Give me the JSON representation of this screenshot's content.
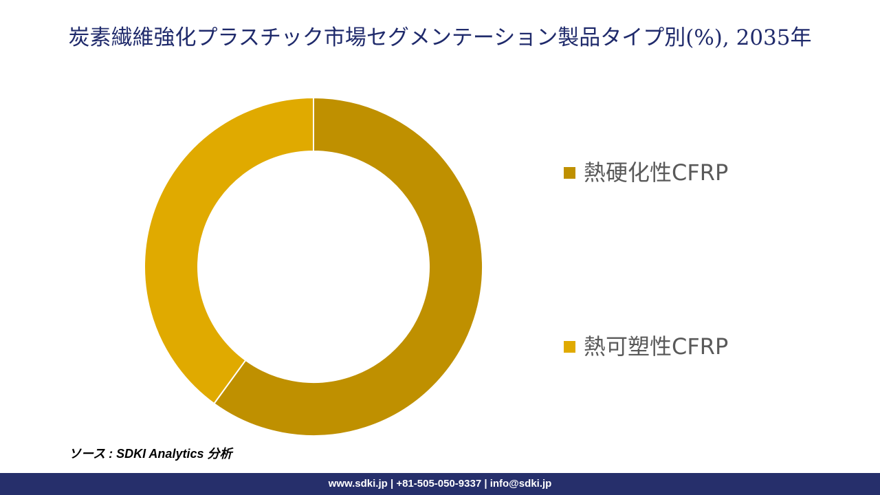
{
  "chart_data": {
    "type": "donut",
    "title": "炭素繊維強化プラスチック市場セグメンテーション製品タイプ別(%), 2035年",
    "categories": [
      "熱硬化性CFRP",
      "熱可塑性CFRP"
    ],
    "values": [
      60,
      40
    ],
    "colors": [
      "#bf9000",
      "#e0aa00"
    ]
  },
  "source": "ソース : SDKI Analytics 分析",
  "footer": "www.sdki.jp | +81-505-050-9337 | info@sdki.jp"
}
